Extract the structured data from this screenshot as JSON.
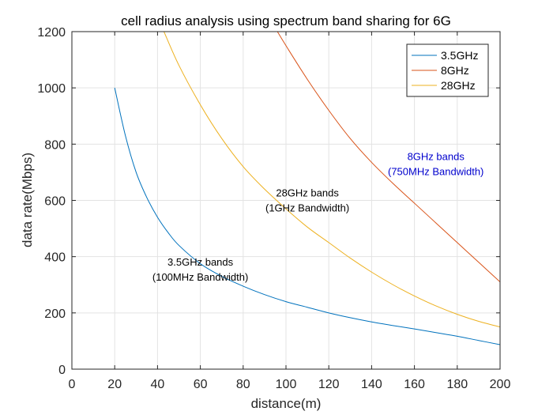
{
  "chart_data": {
    "type": "line",
    "title": "cell radius analysis using spectrum band sharing for 6G",
    "xlabel": "distance(m)",
    "ylabel": "data rate(Mbps)",
    "xlim": [
      0,
      200
    ],
    "ylim": [
      0,
      1200
    ],
    "xticks": [
      "0",
      "20",
      "40",
      "60",
      "80",
      "100",
      "120",
      "140",
      "160",
      "180",
      "200"
    ],
    "yticks": [
      "0",
      "200",
      "400",
      "600",
      "800",
      "1000",
      "1200"
    ],
    "grid": true,
    "legend_position": "top-right",
    "series": [
      {
        "name": "3.5GHz",
        "color": "#0072BD",
        "x": [
          20,
          25,
          30,
          35,
          40,
          45,
          50,
          60,
          70,
          80,
          90,
          100,
          110,
          120,
          130,
          140,
          150,
          160,
          170,
          180,
          190,
          200
        ],
        "y": [
          1000,
          830,
          700,
          610,
          540,
          485,
          440,
          375,
          330,
          295,
          265,
          240,
          220,
          200,
          183,
          168,
          155,
          143,
          130,
          117,
          102,
          87
        ]
      },
      {
        "name": "8GHz",
        "color": "#D95319",
        "x": [
          96,
          100,
          110,
          120,
          130,
          140,
          150,
          160,
          170,
          180,
          190,
          200
        ],
        "y": [
          1200,
          1150,
          1030,
          920,
          820,
          735,
          660,
          590,
          520,
          450,
          380,
          310
        ]
      },
      {
        "name": "28GHz",
        "color": "#EDB120",
        "x": [
          43,
          50,
          60,
          70,
          80,
          90,
          100,
          110,
          120,
          130,
          140,
          150,
          160,
          170,
          180,
          190,
          200
        ],
        "y": [
          1200,
          1080,
          940,
          820,
          720,
          640,
          570,
          505,
          450,
          395,
          345,
          300,
          260,
          225,
          195,
          170,
          150
        ]
      }
    ],
    "annotations": [
      {
        "lines": [
          "3.5GHz bands",
          "(100MHz Bandwidth)"
        ],
        "x": 60,
        "y": 360,
        "color": "#000000"
      },
      {
        "lines": [
          "28GHz bands",
          "(1GHz Bandwidth)"
        ],
        "x": 110,
        "y": 605,
        "color": "#000000"
      },
      {
        "lines": [
          "8GHz bands",
          "(750MHz Bandwidth)"
        ],
        "x": 170,
        "y": 735,
        "color": "#0000CD"
      }
    ]
  }
}
